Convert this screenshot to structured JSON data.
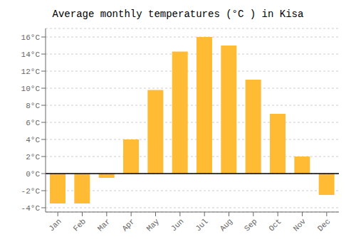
{
  "chart_data": {
    "type": "bar",
    "title": "Average monthly temperatures (°C ) in Kisa",
    "categories": [
      "Jan",
      "Feb",
      "Mar",
      "Apr",
      "May",
      "Jun",
      "Jul",
      "Aug",
      "Sep",
      "Oct",
      "Nov",
      "Dec"
    ],
    "values": [
      -3.5,
      -3.5,
      -0.5,
      4.0,
      9.8,
      14.3,
      16.0,
      15.0,
      11.0,
      7.0,
      2.0,
      -2.5
    ],
    "color": "#FFBB33",
    "ylim": [
      -4.5,
      17.0
    ],
    "yticks": [
      {
        "value": -4,
        "label": "-4°C"
      },
      {
        "value": -2,
        "label": "-2°C"
      },
      {
        "value": 0,
        "label": "0°C"
      },
      {
        "value": 2,
        "label": "2°C"
      },
      {
        "value": 4,
        "label": "4°C"
      },
      {
        "value": 6,
        "label": "6°C"
      },
      {
        "value": 8,
        "label": "8°C"
      },
      {
        "value": 10,
        "label": "10°C"
      },
      {
        "value": 12,
        "label": "12°C"
      },
      {
        "value": 14,
        "label": "14°C"
      },
      {
        "value": 16,
        "label": "16°C"
      }
    ],
    "grid": true
  }
}
